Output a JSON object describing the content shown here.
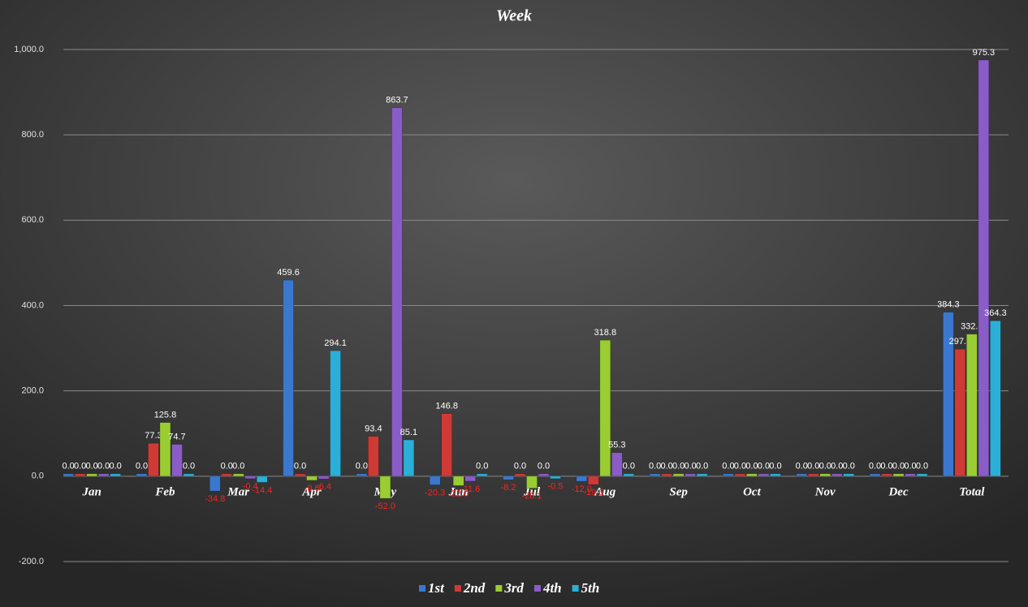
{
  "chart_data": {
    "type": "bar",
    "title": "Week",
    "categories": [
      "Jan",
      "Feb",
      "Mar",
      "Apr",
      "May",
      "Jun",
      "Jul",
      "Aug",
      "Sep",
      "Oct",
      "Nov",
      "Dec",
      "Total"
    ],
    "series": [
      {
        "name": "1st",
        "color": "#3a78d0",
        "values": [
          0,
          0,
          -34.8,
          459.6,
          0,
          -20.3,
          -8.2,
          -12.0,
          0,
          0,
          0,
          0,
          384.3
        ],
        "value_labels": [
          "0.0",
          "0.0",
          "-34.8",
          "459.6",
          "0.0",
          "-20.3",
          "-8.2",
          "-12.0",
          "0.0",
          "0.0",
          "0.0",
          "0.0",
          "384.3"
        ]
      },
      {
        "name": "2nd",
        "color": "#d03a35",
        "values": [
          0,
          77.3,
          0,
          0,
          93.4,
          146.8,
          0,
          -19.6,
          0,
          0,
          0,
          0,
          297.9
        ],
        "value_labels": [
          "0.0",
          "77.3",
          "0.0",
          "0.0",
          "93.4",
          "146.8",
          "0.0",
          "-19.6",
          "0.0",
          "0.0",
          "0.0",
          "0.0",
          "297.9"
        ]
      },
      {
        "name": "3rd",
        "color": "#9acd32",
        "values": [
          0,
          125.8,
          0,
          -9.6,
          -52.0,
          -22.0,
          -28.1,
          318.8,
          0,
          0,
          0,
          0,
          332.9
        ],
        "value_labels": [
          "0.0",
          "125.8",
          "0.0",
          "-9.6",
          "-52.0",
          "-22.0",
          "-28.1",
          "318.8",
          "0.0",
          "0.0",
          "0.0",
          "0.0",
          "332.9"
        ]
      },
      {
        "name": "4th",
        "color": "#8a5cc8",
        "values": [
          0,
          74.7,
          -0.4,
          -6.4,
          863.7,
          -11.6,
          0,
          55.3,
          0,
          0,
          0,
          0,
          975.3
        ],
        "value_labels": [
          "0.0",
          "74.7",
          "-0.4",
          "-6.4",
          "863.7",
          "-11.6",
          "0.0",
          "55.3",
          "0.0",
          "0.0",
          "0.0",
          "0.0",
          "975.3"
        ]
      },
      {
        "name": "5th",
        "color": "#2ab0d8",
        "values": [
          0,
          0,
          -14.4,
          294.1,
          85.1,
          0,
          -0.5,
          0,
          0,
          0,
          0,
          0,
          364.3
        ],
        "value_labels": [
          "0.0",
          "0.0",
          "-14.4",
          "294.1",
          "85.1",
          "0.0",
          "-0.5",
          "0.0",
          "0.0",
          "0.0",
          "0.0",
          "0.0",
          "364.3"
        ]
      }
    ],
    "ylim": [
      -200,
      1000
    ],
    "yticks": [
      {
        "value": -200,
        "label": "-200.0"
      },
      {
        "value": 0,
        "label": "0.0"
      },
      {
        "value": 200,
        "label": "200.0"
      },
      {
        "value": 400,
        "label": "400.0"
      },
      {
        "value": 600,
        "label": "600.0"
      },
      {
        "value": 800,
        "label": "800.0"
      },
      {
        "value": 1000,
        "label": "1,000.0"
      }
    ],
    "grid": true,
    "legend": "bottom"
  }
}
